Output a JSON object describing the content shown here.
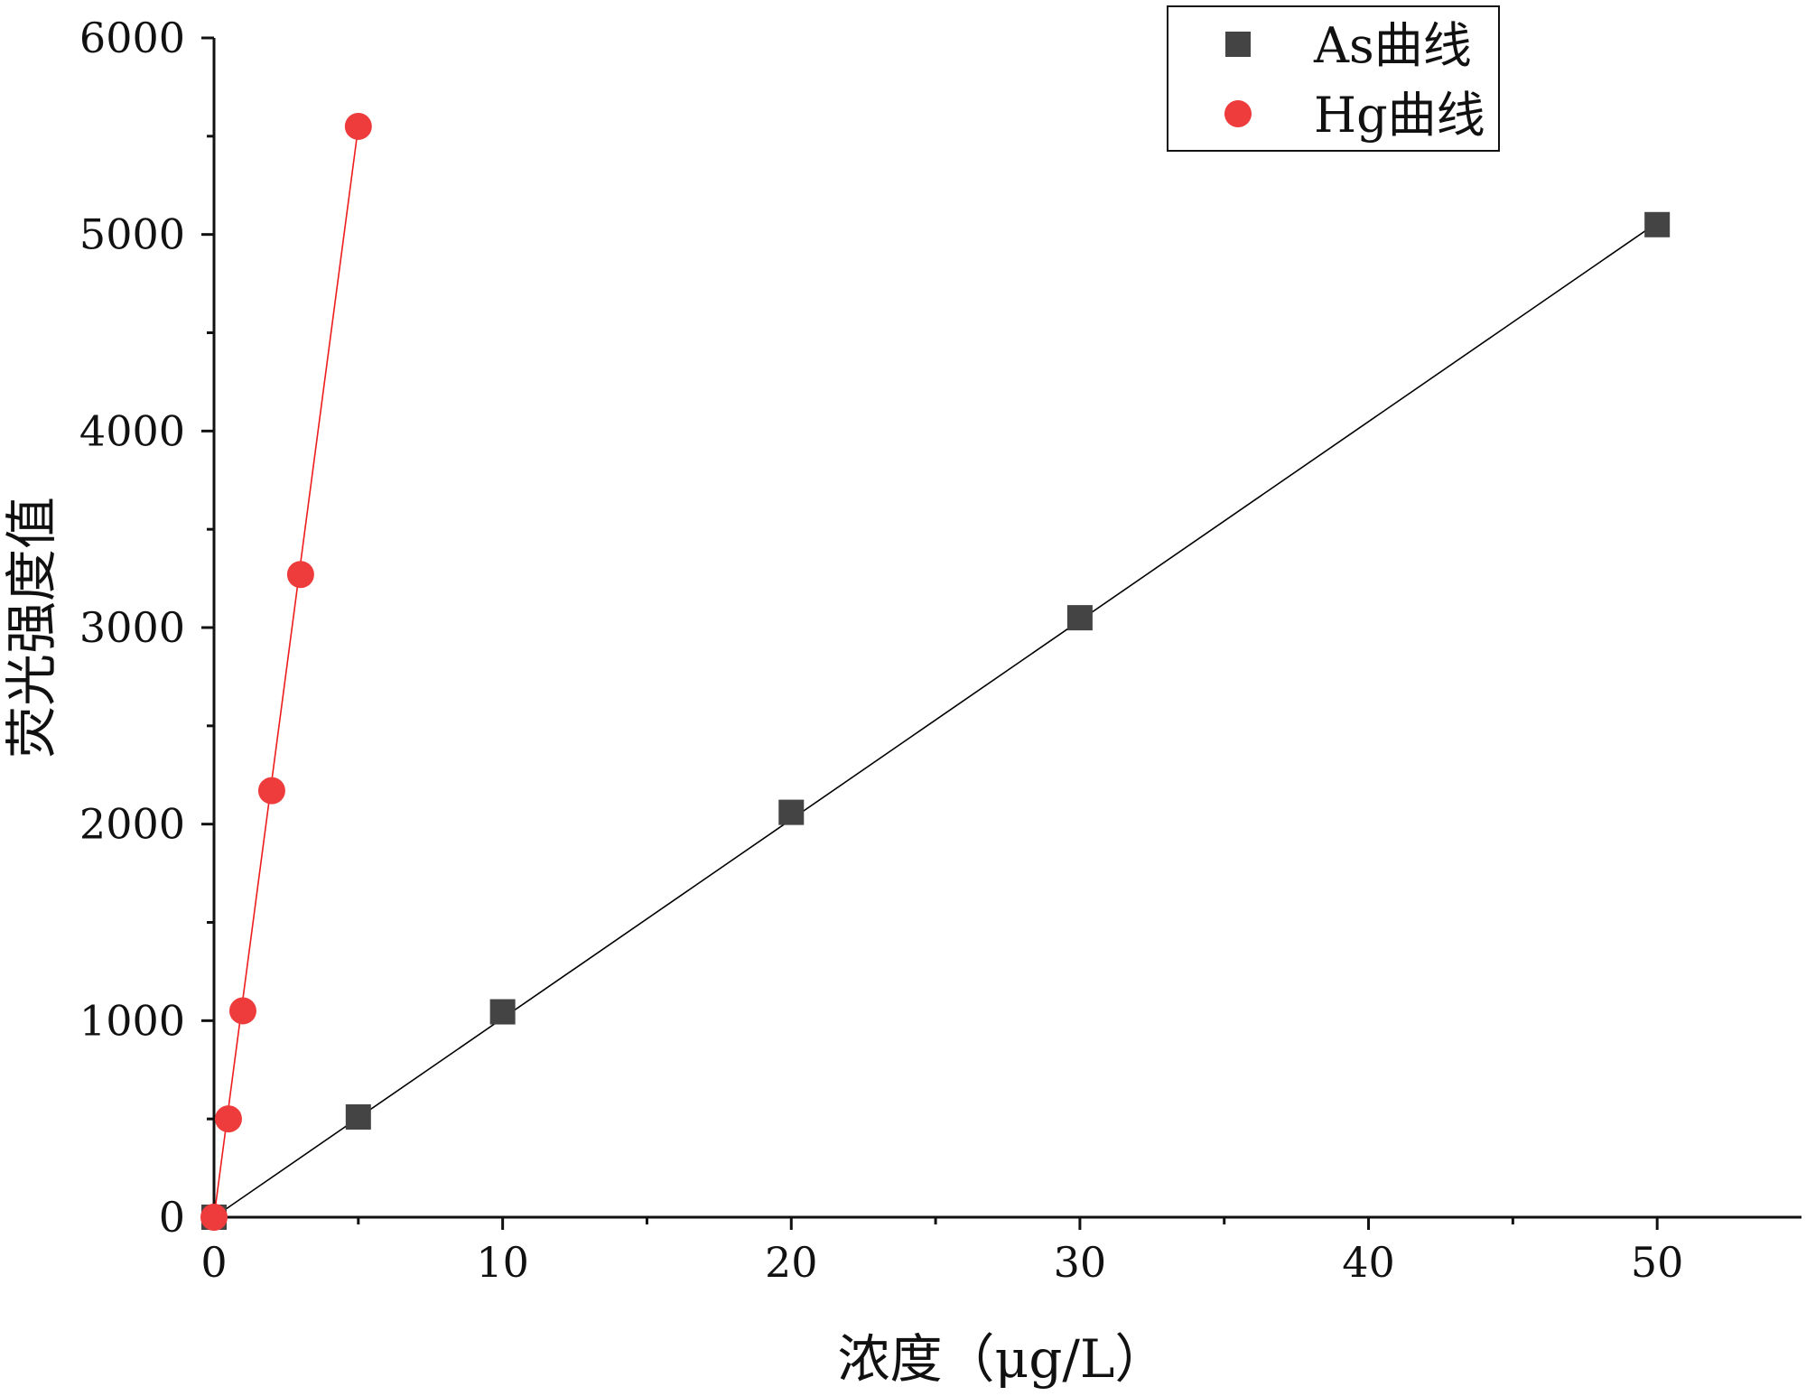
{
  "chart_data": {
    "type": "scatter",
    "xlabel": "浓度（μg/L）",
    "ylabel": "荧光强度值",
    "xlim": [
      0,
      55
    ],
    "ylim": [
      0,
      6000
    ],
    "x_ticks": [
      0,
      10,
      20,
      30,
      40,
      50
    ],
    "x_minor_ticks": [
      5,
      15,
      25,
      35,
      45
    ],
    "y_ticks": [
      0,
      1000,
      2000,
      3000,
      4000,
      5000,
      6000
    ],
    "y_minor_ticks": [
      500,
      1500,
      2500,
      3500,
      4500,
      5500
    ],
    "grid": false,
    "legend_position": "top-right",
    "series": [
      {
        "name": "As曲线",
        "marker": "square",
        "color": "#444444",
        "x": [
          0,
          5,
          10,
          20,
          30,
          50
        ],
        "y": [
          0,
          510,
          1045,
          2060,
          3050,
          5050
        ],
        "fit_line": {
          "x": [
            0,
            50
          ],
          "y": [
            0,
            5060
          ],
          "color": "#000000"
        }
      },
      {
        "name": "Hg曲线",
        "marker": "circle",
        "color": "#ee3b3b",
        "x": [
          0,
          0.5,
          1,
          2,
          3,
          5
        ],
        "y": [
          0,
          500,
          1050,
          2170,
          3270,
          5550
        ],
        "fit_line": {
          "x": [
            0,
            5
          ],
          "y": [
            0,
            5550
          ],
          "color": "#ee1c1c"
        }
      }
    ]
  }
}
